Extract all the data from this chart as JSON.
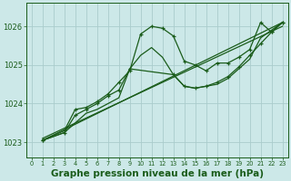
{
  "bg_color": "#cce8e8",
  "grid_color": "#aacccc",
  "line_color": "#1a5c1a",
  "xlabel": "Graphe pression niveau de la mer (hPa)",
  "xlabel_color": "#1a5c1a",
  "xlabel_fontsize": 7.5,
  "ylim": [
    1022.6,
    1026.6
  ],
  "xlim": [
    -0.5,
    23.5
  ],
  "yticks": [
    1023,
    1024,
    1025,
    1026
  ],
  "series": [
    {
      "x": [
        1,
        3,
        4,
        5,
        6,
        7,
        8,
        9,
        10,
        11,
        12,
        13,
        14,
        15,
        16,
        17,
        18,
        19,
        20,
        21,
        22,
        23
      ],
      "y": [
        1023.05,
        1023.3,
        1023.85,
        1023.9,
        1024.05,
        1024.25,
        1024.55,
        1024.85,
        1025.8,
        1026.0,
        1025.95,
        1025.75,
        1025.1,
        1025.0,
        1024.85,
        1025.05,
        1025.05,
        1025.2,
        1025.4,
        1026.1,
        1025.85,
        1026.1
      ],
      "with_markers": true,
      "linewidth": 0.9
    },
    {
      "x": [
        1,
        23
      ],
      "y": [
        1023.05,
        1026.1
      ],
      "with_markers": false,
      "linewidth": 0.9
    },
    {
      "x": [
        1,
        23
      ],
      "y": [
        1023.1,
        1026.0
      ],
      "with_markers": false,
      "linewidth": 0.9
    },
    {
      "x": [
        1,
        3,
        5,
        6,
        7,
        8,
        9,
        10,
        11,
        12,
        13,
        14,
        15,
        16,
        17,
        18,
        19,
        20,
        21,
        22,
        23
      ],
      "y": [
        1023.05,
        1023.25,
        1023.75,
        1023.85,
        1024.0,
        1024.15,
        1024.9,
        1025.25,
        1025.45,
        1025.2,
        1024.75,
        1024.45,
        1024.4,
        1024.45,
        1024.5,
        1024.65,
        1024.9,
        1025.15,
        1025.7,
        1025.9,
        1026.1
      ],
      "with_markers": false,
      "linewidth": 0.9
    },
    {
      "x": [
        1,
        3,
        4,
        5,
        6,
        7,
        8,
        9,
        13,
        14,
        15,
        16,
        17,
        18,
        19,
        20,
        21,
        22,
        23
      ],
      "y": [
        1023.05,
        1023.25,
        1023.7,
        1023.85,
        1024.0,
        1024.2,
        1024.35,
        1024.9,
        1024.75,
        1024.45,
        1024.4,
        1024.45,
        1024.55,
        1024.7,
        1024.95,
        1025.25,
        1025.55,
        1025.85,
        1026.1
      ],
      "with_markers": true,
      "linewidth": 0.9
    }
  ]
}
